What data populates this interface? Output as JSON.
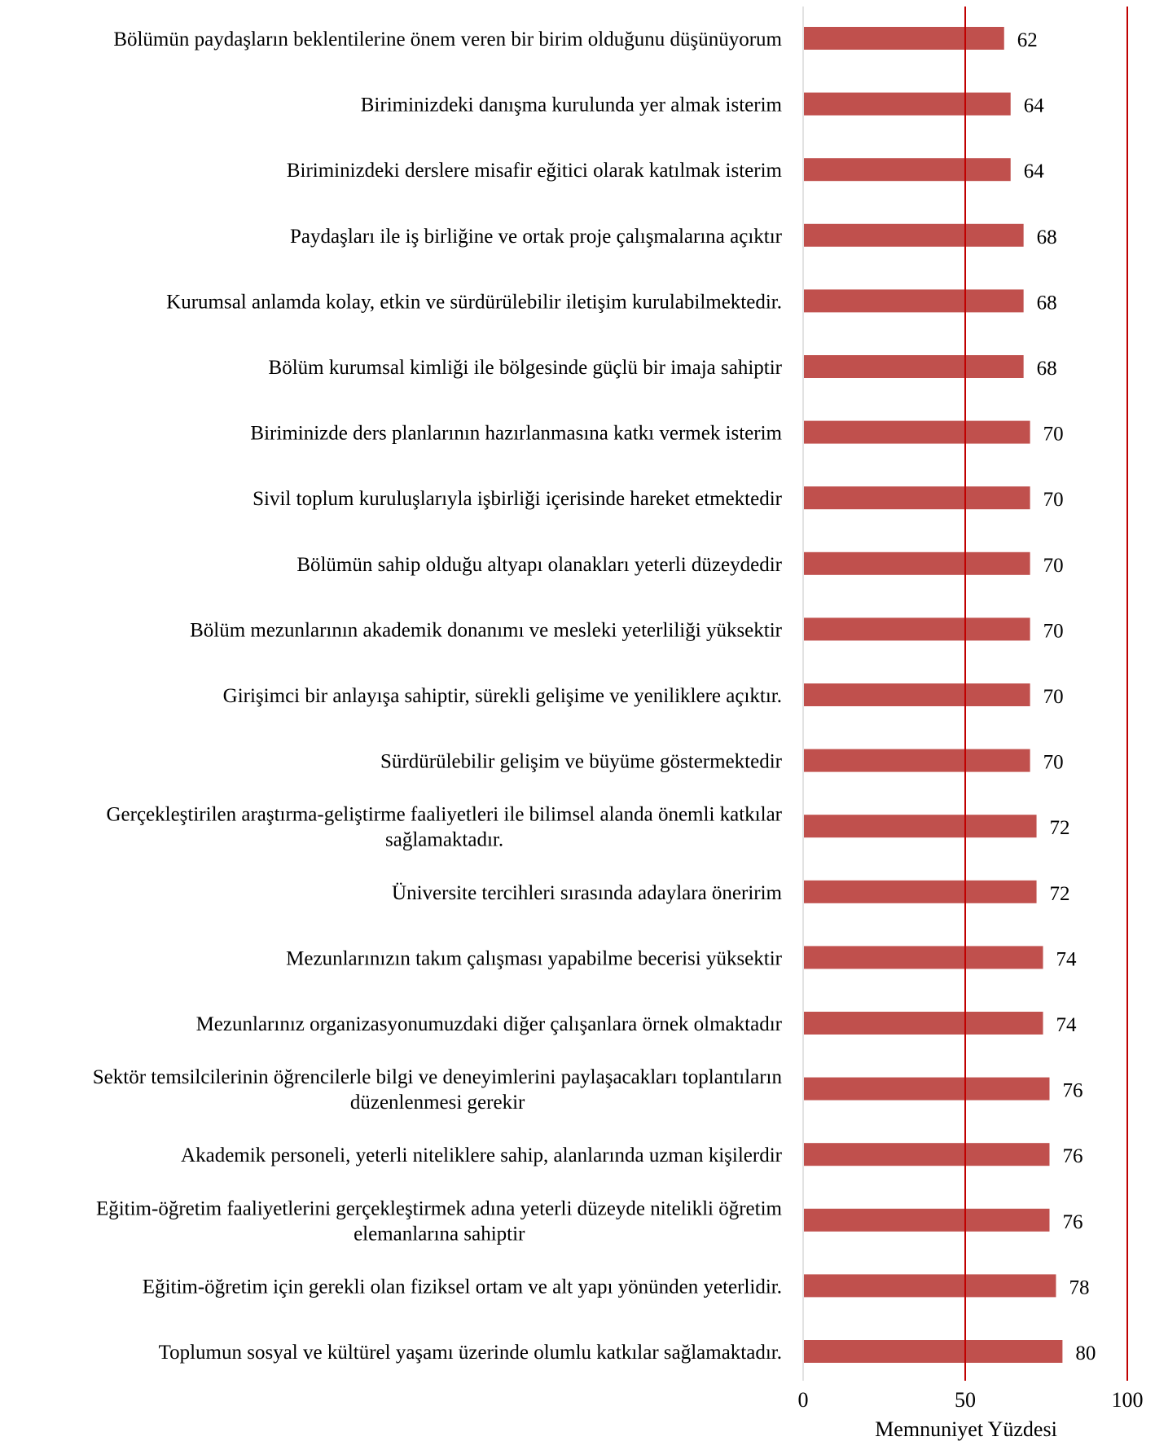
{
  "chart_data": {
    "type": "bar",
    "orientation": "horizontal",
    "title": "",
    "xlabel": "Memnuniyet Yüzdesi",
    "ylabel": "",
    "xlim": [
      0,
      100
    ],
    "xticks": [
      "0",
      "50",
      "100"
    ],
    "reference_lines": [
      50,
      100
    ],
    "grid": false,
    "legend": "none",
    "colors": {
      "bar": "#c0504d",
      "reference_line": "#c00000",
      "axis": "#d9d9d9",
      "text": "#000000"
    },
    "categories": [
      [
        "Bölümün paydaşların beklentilerine önem veren bir birim olduğunu düşünüyorum"
      ],
      [
        "Biriminizdeki danışma kurulunda yer almak isterim"
      ],
      [
        "Biriminizdeki derslere misafir eğitici olarak katılmak isterim"
      ],
      [
        "Paydaşları ile iş birliğine ve ortak proje çalışmalarına açıktır"
      ],
      [
        "Kurumsal anlamda kolay, etkin ve sürdürülebilir iletişim kurulabilmektedir."
      ],
      [
        "Bölüm kurumsal kimliği ile bölgesinde güçlü bir imaja sahiptir"
      ],
      [
        "Biriminizde ders planlarının hazırlanmasına katkı vermek isterim"
      ],
      [
        "Sivil toplum kuruluşlarıyla işbirliği içerisinde hareket etmektedir"
      ],
      [
        "Bölümün sahip olduğu altyapı olanakları yeterli düzeydedir"
      ],
      [
        "Bölüm mezunlarının akademik donanımı ve mesleki yeterliliği yüksektir"
      ],
      [
        "Girişimci bir anlayışa sahiptir, sürekli gelişime ve yeniliklere açıktır."
      ],
      [
        "Sürdürülebilir gelişim ve büyüme göstermektedir"
      ],
      [
        "Gerçekleştirilen araştırma-geliştirme faaliyetleri ile bilimsel alanda önemli katkılar",
        "sağlamaktadır."
      ],
      [
        "Üniversite tercihleri sırasında adaylara öneririm"
      ],
      [
        "Mezunlarınızın takım çalışması yapabilme becerisi yüksektir"
      ],
      [
        "Mezunlarınız organizasyonumuzdaki diğer çalışanlara örnek olmaktadır"
      ],
      [
        "Sektör temsilcilerinin öğrencilerle bilgi ve deneyimlerini paylaşacakları toplantıların",
        "düzenlenmesi gerekir"
      ],
      [
        "Akademik personeli, yeterli niteliklere sahip, alanlarında uzman kişilerdir"
      ],
      [
        "Eğitim-öğretim faaliyetlerini gerçekleştirmek adına yeterli düzeyde nitelikli öğretim",
        "elemanlarına sahiptir"
      ],
      [
        "Eğitim-öğretim için gerekli olan fiziksel ortam ve alt yapı yönünden yeterlidir."
      ],
      [
        "Toplumun sosyal ve kültürel yaşamı üzerinde olumlu katkılar sağlamaktadır."
      ]
    ],
    "values": [
      62,
      64,
      64,
      68,
      68,
      68,
      70,
      70,
      70,
      70,
      70,
      70,
      72,
      72,
      74,
      74,
      76,
      76,
      76,
      78,
      80
    ]
  }
}
